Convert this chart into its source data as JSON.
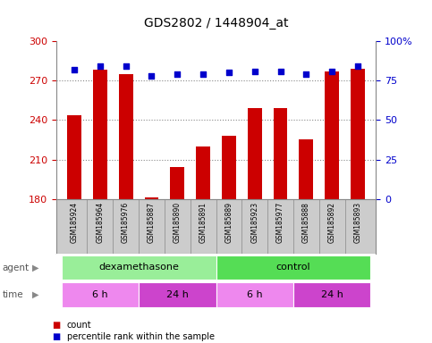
{
  "title": "GDS2802 / 1448904_at",
  "samples": [
    "GSM185924",
    "GSM185964",
    "GSM185976",
    "GSM185887",
    "GSM185890",
    "GSM185891",
    "GSM185889",
    "GSM185923",
    "GSM185977",
    "GSM185888",
    "GSM185892",
    "GSM185893"
  ],
  "counts": [
    244,
    278,
    275,
    181,
    204,
    220,
    228,
    249,
    249,
    225,
    277,
    279
  ],
  "percentile_ranks": [
    82,
    84,
    84,
    78,
    79,
    79,
    80,
    81,
    81,
    79,
    81,
    84
  ],
  "ylim_left": [
    180,
    300
  ],
  "ylim_right": [
    0,
    100
  ],
  "yticks_left": [
    180,
    210,
    240,
    270,
    300
  ],
  "yticks_right": [
    0,
    25,
    50,
    75,
    100
  ],
  "bar_color": "#cc0000",
  "dot_color": "#0000cc",
  "bar_width": 0.55,
  "agent_groups": [
    {
      "label": "dexamethasone",
      "start": 0,
      "end": 6,
      "color": "#99ee99"
    },
    {
      "label": "control",
      "start": 6,
      "end": 12,
      "color": "#55dd55"
    }
  ],
  "time_groups": [
    {
      "label": "6 h",
      "start": 0,
      "end": 3,
      "color": "#ee88ee"
    },
    {
      "label": "24 h",
      "start": 3,
      "end": 6,
      "color": "#cc44cc"
    },
    {
      "label": "6 h",
      "start": 6,
      "end": 9,
      "color": "#ee88ee"
    },
    {
      "label": "24 h",
      "start": 9,
      "end": 12,
      "color": "#cc44cc"
    }
  ],
  "legend_items": [
    {
      "label": "count",
      "color": "#cc0000"
    },
    {
      "label": "percentile rank within the sample",
      "color": "#0000cc"
    }
  ],
  "left_axis_color": "#cc0000",
  "right_axis_color": "#0000cc",
  "background_color": "#ffffff",
  "grid_color": "#888888",
  "label_bg_color": "#cccccc",
  "label_sep_color": "#888888"
}
